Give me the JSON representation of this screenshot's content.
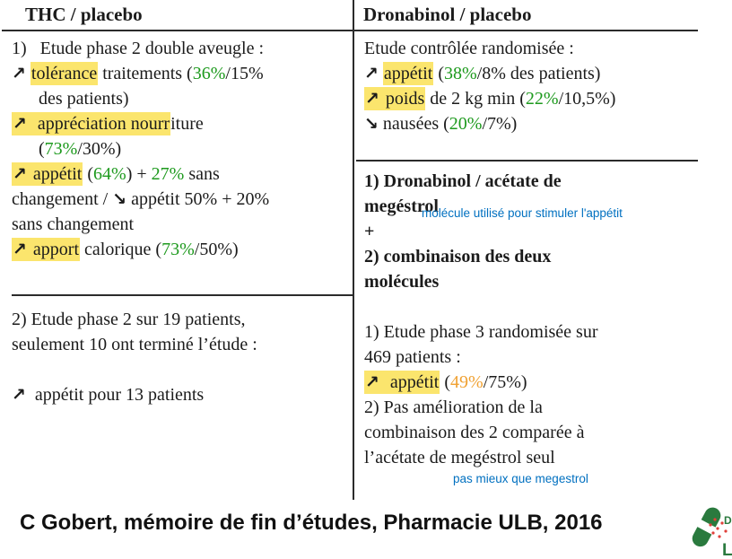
{
  "table": {
    "headers": {
      "left": "THC / placebo",
      "right": "Dronabinol / placebo"
    },
    "left_cell1": [
      {
        "s": [
          {
            "t": "1)   Etude phase 2 double aveugle :"
          }
        ]
      },
      {
        "s": [
          {
            "t": "↗",
            "c": "arrow"
          },
          {
            "t": " "
          },
          {
            "t": "tolérance",
            "c": "hl"
          },
          {
            "t": " traitements ("
          },
          {
            "t": "36%",
            "c": "green"
          },
          {
            "t": "/15%"
          }
        ]
      },
      {
        "c": "indent",
        "s": [
          {
            "t": "des patients)"
          }
        ]
      },
      {
        "s": [
          {
            "t": "↗",
            "c": "arrow hl"
          },
          {
            "t": "  appréciation nourr",
            "c": "hl"
          },
          {
            "t": "iture"
          }
        ]
      },
      {
        "c": "indent",
        "s": [
          {
            "t": "("
          },
          {
            "t": "73%",
            "c": "green"
          },
          {
            "t": "/30%)"
          }
        ]
      },
      {
        "s": [
          {
            "t": "↗",
            "c": "arrow hl"
          },
          {
            "t": " appétit",
            "c": "hl"
          },
          {
            "t": " ("
          },
          {
            "t": "64%",
            "c": "green"
          },
          {
            "t": ") + "
          },
          {
            "t": "27%",
            "c": "green"
          },
          {
            "t": " sans"
          }
        ]
      },
      {
        "s": [
          {
            "t": "changement / "
          },
          {
            "t": "↘",
            "c": "arrow"
          },
          {
            "t": " appétit 50% + 20%"
          }
        ]
      },
      {
        "s": [
          {
            "t": "sans changement"
          }
        ]
      },
      {
        "s": [
          {
            "t": "↗",
            "c": "arrow hl"
          },
          {
            "t": " apport",
            "c": "hl"
          },
          {
            "t": " calorique ("
          },
          {
            "t": "73%",
            "c": "green"
          },
          {
            "t": "/50%)"
          }
        ]
      }
    ],
    "left_cell2": [
      {
        "s": [
          {
            "t": "2) Etude phase 2 sur 19 patients,"
          }
        ]
      },
      {
        "s": [
          {
            "t": "seulement 10 ont terminé l’étude :"
          }
        ]
      },
      {
        "s": []
      },
      {
        "s": [
          {
            "t": "↗",
            "c": "arrow"
          },
          {
            "t": "  appétit pour 13 patients"
          }
        ]
      }
    ],
    "right_cell1": [
      {
        "s": [
          {
            "t": "Etude contrôlée randomisée :"
          }
        ]
      },
      {
        "s": [
          {
            "t": "↗",
            "c": "arrow"
          },
          {
            "t": " "
          },
          {
            "t": "appétit",
            "c": "hl"
          },
          {
            "t": " ("
          },
          {
            "t": "38%",
            "c": "green"
          },
          {
            "t": "/8% des patients)"
          }
        ]
      },
      {
        "s": [
          {
            "t": "↗",
            "c": "arrow hl"
          },
          {
            "t": " poids",
            "c": "hl"
          },
          {
            "t": " de 2 kg min ("
          },
          {
            "t": "22%",
            "c": "green"
          },
          {
            "t": "/10,5%)"
          }
        ]
      },
      {
        "s": [
          {
            "t": "↘",
            "c": "arrow"
          },
          {
            "t": " nausées ("
          },
          {
            "t": "20%",
            "c": "green"
          },
          {
            "t": "/7%)"
          }
        ]
      }
    ],
    "right_cell2": [
      {
        "s": [
          {
            "t": "1) Dronabinol / acétate de",
            "c": "b"
          }
        ]
      },
      {
        "s": [
          {
            "t": "megéstrol",
            "c": "b"
          }
        ]
      },
      {
        "s": [
          {
            "t": "+",
            "c": "b"
          }
        ]
      },
      {
        "s": [
          {
            "t": "2) combinaison des deux",
            "c": "b"
          }
        ]
      },
      {
        "s": [
          {
            "t": "molécules",
            "c": "b"
          }
        ]
      },
      {
        "s": []
      },
      {
        "s": [
          {
            "t": "1) Etude phase 3 randomisée sur"
          }
        ]
      },
      {
        "s": [
          {
            "t": "469 patients :"
          }
        ]
      },
      {
        "s": [
          {
            "t": "↗",
            "c": "arrow hl"
          },
          {
            "t": "  appétit",
            "c": "hl"
          },
          {
            "t": " ("
          },
          {
            "t": "49%",
            "c": "orange"
          },
          {
            "t": "/75%)"
          }
        ]
      },
      {
        "s": [
          {
            "t": "2) Pas amélioration de la"
          }
        ]
      },
      {
        "s": [
          {
            "t": "combinaison des 2 comparée à"
          }
        ]
      },
      {
        "s": [
          {
            "t": "l’acétate de megéstrol seul"
          }
        ]
      }
    ]
  },
  "annotations": {
    "megestrol_note": "molécule utilisé pour stimuler l'appétit",
    "comparison_note": "pas mieux que megestrol"
  },
  "footer": {
    "citation": "C Gobert, mémoire de fin d’études, Pharmacie ULB, 2016"
  },
  "logo": {
    "letter_top": "D",
    "letter_bottom": "L"
  },
  "colors": {
    "green": "#1e9a1e",
    "orange": "#f0a132",
    "blue": "#0070c0",
    "highlight": "#fbe56d",
    "border": "#2b2b2b",
    "text": "#1b1b1b",
    "logo_green": "#2a7a3e",
    "logo_red": "#e0403a"
  }
}
